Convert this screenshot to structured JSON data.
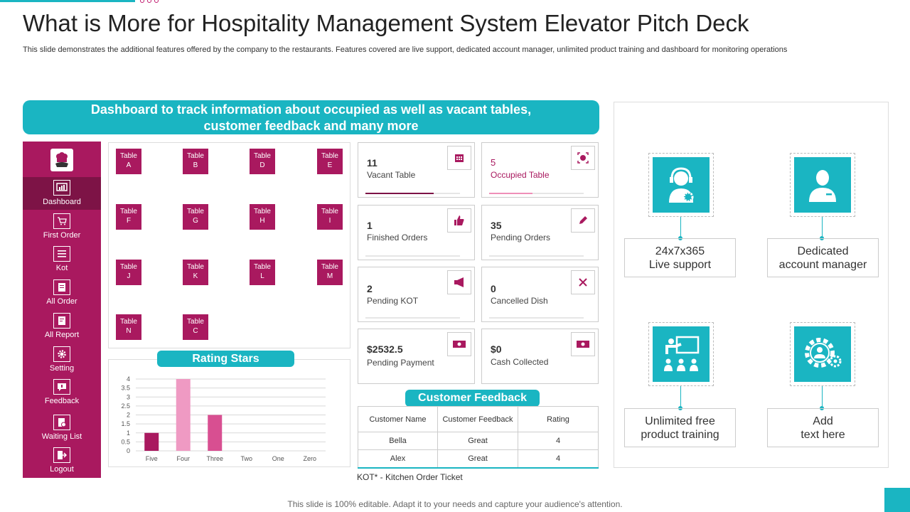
{
  "slide": {
    "title": "What is More for Hospitality Management System Elevator Pitch Deck",
    "subtitle": "This slide demonstrates the additional features offered by the company to the restaurants. Features covered are live  support, dedicated account manager, unlimited product training and dashboard for monitoring operations",
    "footer": "This slide is 100% editable. Adapt it to your needs and capture your audience's attention."
  },
  "banner": {
    "line1": "Dashboard to track information about occupied as well as vacant tables,",
    "line2": "customer feedback and many more"
  },
  "sidebar": {
    "items": [
      {
        "label": "Dashboard",
        "icon": "dashboard-icon"
      },
      {
        "label": "First Order",
        "icon": "cart-icon"
      },
      {
        "label": "Kot",
        "icon": "list-icon"
      },
      {
        "label": "All Order",
        "icon": "order-icon"
      },
      {
        "label": "All Report",
        "icon": "report-icon"
      },
      {
        "label": "Setting",
        "icon": "gear-icon"
      },
      {
        "label": "Feedback",
        "icon": "feedback-icon"
      },
      {
        "label": "Waiting List",
        "icon": "waiting-list-icon"
      },
      {
        "label": "Logout",
        "icon": "logout-icon"
      }
    ]
  },
  "tables": [
    {
      "line1": "Table",
      "line2": "A"
    },
    {
      "line1": "Table",
      "line2": "B"
    },
    {
      "line1": "Table",
      "line2": "D"
    },
    {
      "line1": "Table",
      "line2": "E"
    },
    {
      "line1": "Table",
      "line2": "F"
    },
    {
      "line1": "Table",
      "line2": "G"
    },
    {
      "line1": "Table",
      "line2": "H"
    },
    {
      "line1": "Table",
      "line2": "I"
    },
    {
      "line1": "Table",
      "line2": "J"
    },
    {
      "line1": "Table",
      "line2": "K"
    },
    {
      "line1": "Table",
      "line2": "L"
    },
    {
      "line1": "Table",
      "line2": "M"
    },
    {
      "line1": "Table",
      "line2": "N"
    },
    {
      "line1": "Table",
      "line2": "C"
    }
  ],
  "rating": {
    "title": "Rating Stars",
    "chart_data": {
      "type": "bar",
      "categories": [
        "Five",
        "Four",
        "Three",
        "Two",
        "One",
        "Zero"
      ],
      "values": [
        1,
        4,
        2,
        0,
        0,
        0
      ],
      "ylim": [
        0,
        4
      ],
      "yticks": [
        "4",
        "3.5",
        "3",
        "2.5",
        "2",
        "1.5",
        "1",
        "0.5",
        "0"
      ],
      "colors": [
        "#a9195f",
        "#ef9ac3",
        "#d84f91",
        "#cccccc",
        "#cccccc",
        "#cccccc"
      ]
    }
  },
  "stats": [
    {
      "value": "11",
      "label": "Vacant Table",
      "icon": "calendar-icon",
      "progress": 0.72
    },
    {
      "value": "5",
      "label": "Occupied Table",
      "icon": "target-icon",
      "progress": 0.46
    },
    {
      "value": "1",
      "label": "Finished Orders",
      "icon": "thumbs-up-icon"
    },
    {
      "value": "35",
      "label": "Pending Orders",
      "icon": "pencil-icon"
    },
    {
      "value": "2",
      "label": "Pending KOT",
      "icon": "megaphone-icon"
    },
    {
      "value": "0",
      "label": "Cancelled Dish",
      "icon": "cutlery-icon"
    },
    {
      "value": "$2532.5",
      "label": "Pending Payment",
      "icon": "money-icon"
    },
    {
      "value": "$0",
      "label": "Cash Collected",
      "icon": "money-icon"
    }
  ],
  "feedback": {
    "title": "Customer Feedback",
    "headers": [
      "Customer Name",
      "Customer Feedback",
      "Rating"
    ],
    "rows": [
      {
        "name": "Bella",
        "feedback": "Great",
        "rating": "4"
      },
      {
        "name": "Alex",
        "feedback": "Great",
        "rating": "4"
      }
    ],
    "note": "KOT* - Kitchen Order Ticket"
  },
  "features": [
    {
      "line1": "24x7x365",
      "line2": "Live support",
      "icon": "support-agent-icon"
    },
    {
      "line1": "Dedicated",
      "line2": "account manager",
      "icon": "manager-icon"
    },
    {
      "line1": "Unlimited free",
      "line2": "product training",
      "icon": "training-icon"
    },
    {
      "line1": "Add",
      "line2": "text here",
      "icon": "team-gear-icon"
    }
  ],
  "colors": {
    "teal": "#1ab5c2",
    "magenta": "#a9195f",
    "dark_magenta": "#7d1346"
  }
}
